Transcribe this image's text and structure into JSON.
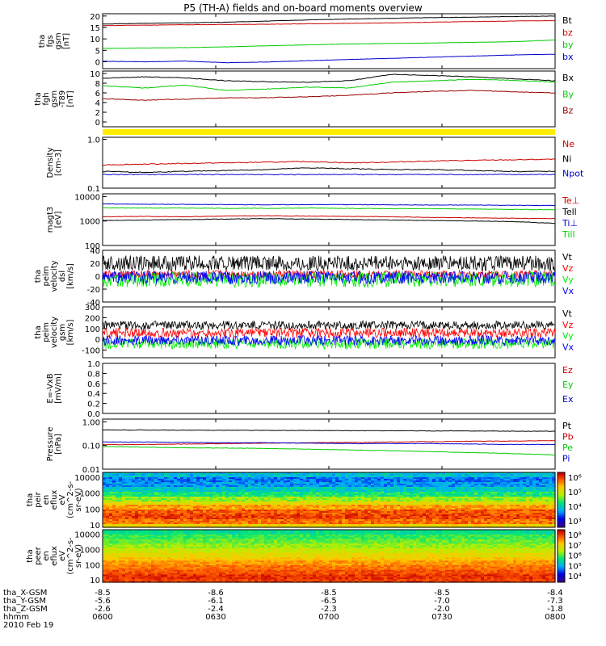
{
  "title": "P5 (TH-A) fields and on-board moments overview",
  "chart_data": [
    {
      "type": "line",
      "ylabel": [
        "tha",
        "fgs",
        "gsm",
        "[nT]"
      ],
      "yticks": [
        "0",
        "5",
        "10",
        "15",
        "20"
      ],
      "ylim": [
        -3,
        21
      ],
      "series": [
        {
          "name": "Bt",
          "color": "#000000",
          "values": [
            16.5,
            16.8,
            17.0,
            17.3,
            17.8,
            18.3,
            18.7,
            19.0,
            19.3,
            19.5,
            19.8,
            20.0
          ]
        },
        {
          "name": "bz",
          "color": "#cc0000",
          "values": [
            15.8,
            16.0,
            16.2,
            16.3,
            16.4,
            16.6,
            16.8,
            17.0,
            17.3,
            17.6,
            17.8,
            18.0
          ]
        },
        {
          "name": "by",
          "color": "#00cc00",
          "values": [
            5.8,
            6.0,
            6.2,
            6.5,
            7.0,
            7.4,
            7.8,
            8.0,
            8.2,
            8.5,
            8.8,
            9.5
          ]
        },
        {
          "name": "bx",
          "color": "#0000cc",
          "values": [
            0.2,
            0.0,
            0.3,
            -0.4,
            -0.1,
            0.5,
            1.0,
            1.5,
            2.0,
            2.5,
            3.0,
            3.3
          ]
        }
      ]
    },
    {
      "type": "line",
      "ylabel": [
        "tha",
        "fgh",
        "gsm",
        "-T89",
        "[nT]"
      ],
      "yticks": [
        "0",
        "2",
        "4",
        "6",
        "8",
        "10"
      ],
      "ylim": [
        -1,
        10.5
      ],
      "series": [
        {
          "name": "Bx",
          "color": "#000000",
          "values": [
            9.0,
            9.3,
            9.1,
            8.5,
            8.3,
            8.2,
            8.5,
            9.8,
            9.6,
            9.3,
            8.9,
            8.5
          ]
        },
        {
          "name": "By",
          "color": "#00cc00",
          "values": [
            7.5,
            7.0,
            7.6,
            6.5,
            6.8,
            7.2,
            7.0,
            8.2,
            8.5,
            8.8,
            8.6,
            8.2
          ]
        },
        {
          "name": "Bz",
          "color": "#990000",
          "values": [
            4.8,
            4.5,
            4.7,
            5.0,
            5.0,
            5.2,
            5.5,
            6.0,
            6.3,
            6.5,
            6.2,
            6.0
          ]
        }
      ]
    },
    {
      "type": "bar",
      "color": "#ffee00",
      "values": [
        1
      ]
    },
    {
      "type": "line",
      "yscale": "log",
      "ylabel": [
        "Density",
        "[cm-3]"
      ],
      "yticks": [
        "0.1",
        "1.0"
      ],
      "ylim": [
        0.1,
        1.1
      ],
      "series": [
        {
          "name": "Ne",
          "color": "#cc0000",
          "values": [
            0.3,
            0.31,
            0.32,
            0.33,
            0.34,
            0.35,
            0.33,
            0.34,
            0.36,
            0.37,
            0.38,
            0.39
          ]
        },
        {
          "name": "Ni",
          "color": "#000000",
          "values": [
            0.22,
            0.21,
            0.22,
            0.23,
            0.24,
            0.26,
            0.25,
            0.24,
            0.24,
            0.23,
            0.22,
            0.22
          ]
        },
        {
          "name": "Npot",
          "color": "#0000cc",
          "values": [
            0.19,
            0.19,
            0.19,
            0.19,
            0.19,
            0.19,
            0.19,
            0.19,
            0.19,
            0.19,
            0.19,
            0.19
          ]
        }
      ]
    },
    {
      "type": "line",
      "yscale": "log",
      "ylabel": [
        "magt3",
        "[eV]"
      ],
      "yticks": [
        "100",
        "1000",
        "10000"
      ],
      "ylim": [
        100,
        13000
      ],
      "series": [
        {
          "name": "Te⊥",
          "color": "#cc0000",
          "values": [
            1500,
            1550,
            1500,
            1600,
            1650,
            1600,
            1550,
            1500,
            1400,
            1350,
            1300,
            1250
          ]
        },
        {
          "name": "Tell",
          "color": "#000000",
          "values": [
            1050,
            1100,
            1150,
            1200,
            1250,
            1200,
            1150,
            1100,
            1050,
            1000,
            950,
            800
          ]
        },
        {
          "name": "Ti⊥",
          "color": "#0000cc",
          "values": [
            5000,
            4900,
            4800,
            4700,
            4600,
            4700,
            4700,
            4600,
            4500,
            4500,
            4400,
            4300
          ]
        },
        {
          "name": "Till",
          "color": "#00cc00",
          "values": [
            3500,
            3400,
            3400,
            3300,
            3300,
            3400,
            3300,
            3200,
            3200,
            3100,
            3000,
            2900
          ]
        }
      ]
    },
    {
      "type": "line",
      "ylabel": [
        "tha",
        "peim",
        "velocity",
        "dsl",
        "[km/s]"
      ],
      "yticks": [
        "-40",
        "-20",
        "0",
        "20",
        "40"
      ],
      "ylim": [
        -40,
        40
      ],
      "series": [
        {
          "name": "Vt",
          "color": "#000000",
          "values": [
            20,
            20,
            20,
            20,
            20,
            20,
            20,
            20,
            20,
            20,
            20,
            20
          ],
          "noise": 12
        },
        {
          "name": "Vz",
          "color": "#ff0000",
          "values": [
            3,
            3,
            3,
            3,
            3,
            3,
            3,
            3,
            3,
            3,
            3,
            3
          ],
          "noise": 6
        },
        {
          "name": "Vy",
          "color": "#00ee00",
          "values": [
            -5,
            -5,
            -5,
            -5,
            -5,
            -5,
            -5,
            -5,
            -5,
            -5,
            -5,
            -5
          ],
          "noise": 12
        },
        {
          "name": "Vx",
          "color": "#0000ff",
          "values": [
            -2,
            -2,
            -2,
            -2,
            -2,
            -2,
            -2,
            -2,
            -2,
            -2,
            -2,
            -2
          ],
          "noise": 10
        }
      ]
    },
    {
      "type": "line",
      "ylabel": [
        "tha",
        "peim",
        "velocity",
        "gsm",
        "[km/s]"
      ],
      "yticks": [
        "-100",
        "0",
        "100",
        "200",
        "300"
      ],
      "ylim": [
        -170,
        300
      ],
      "series": [
        {
          "name": "Vt",
          "color": "#000000",
          "values": [
            130,
            130,
            130,
            130,
            130,
            130,
            130,
            130,
            130,
            130,
            130,
            130
          ],
          "noise": 40
        },
        {
          "name": "Vz",
          "color": "#ff0000",
          "values": [
            60,
            60,
            60,
            60,
            60,
            60,
            60,
            60,
            60,
            60,
            60,
            60
          ],
          "noise": 45
        },
        {
          "name": "Vy",
          "color": "#00ee00",
          "values": [
            -40,
            -40,
            -40,
            -40,
            -40,
            -40,
            -40,
            -40,
            -40,
            -40,
            -40,
            -40
          ],
          "noise": 50
        },
        {
          "name": "Vx",
          "color": "#0000ff",
          "values": [
            -10,
            -10,
            -10,
            -10,
            -10,
            -10,
            -10,
            -10,
            -10,
            -10,
            -10,
            -10
          ],
          "noise": 45
        }
      ]
    },
    {
      "type": "line",
      "ylabel": [
        "E=-VxB",
        "[mV/m]"
      ],
      "yticks": [
        "0.0",
        "0.2",
        "0.4",
        "0.6",
        "0.8",
        "1.0"
      ],
      "ylim": [
        0,
        1
      ],
      "series": [
        {
          "name": "Ez",
          "color": "#cc0000",
          "values": []
        },
        {
          "name": "Ey",
          "color": "#00cc00",
          "values": []
        },
        {
          "name": "Ex",
          "color": "#0000cc",
          "values": []
        }
      ]
    },
    {
      "type": "line",
      "yscale": "log",
      "ylabel": [
        "Pressure",
        "[nPa]"
      ],
      "yticks": [
        "0.01",
        "0.10",
        "1.00"
      ],
      "ylim": [
        0.01,
        1.3
      ],
      "series": [
        {
          "name": "Pt",
          "color": "#000000",
          "values": [
            0.45,
            0.45,
            0.44,
            0.44,
            0.43,
            0.43,
            0.42,
            0.42,
            0.41,
            0.41,
            0.4,
            0.4
          ]
        },
        {
          "name": "Pb",
          "color": "#cc0000",
          "values": [
            0.11,
            0.11,
            0.115,
            0.12,
            0.125,
            0.13,
            0.135,
            0.14,
            0.145,
            0.15,
            0.155,
            0.16
          ]
        },
        {
          "name": "Pe",
          "color": "#00cc00",
          "values": [
            0.09,
            0.085,
            0.08,
            0.078,
            0.075,
            0.07,
            0.065,
            0.06,
            0.055,
            0.05,
            0.045,
            0.04
          ]
        },
        {
          "name": "Pi",
          "color": "#0000cc",
          "values": [
            0.14,
            0.14,
            0.135,
            0.13,
            0.13,
            0.125,
            0.12,
            0.12,
            0.12,
            0.115,
            0.11,
            0.11
          ]
        }
      ]
    },
    {
      "type": "heatmap",
      "ylabel": [
        "tha",
        "peir",
        "en",
        "eflux",
        "eV",
        "(cm^2-s-",
        "sr-eV)"
      ],
      "yticks": [
        "10",
        "100",
        "1000",
        "10000"
      ],
      "ylim": [
        7,
        20000
      ],
      "yscale": "log",
      "colorbar": {
        "ticks": [
          "10³",
          "10⁴",
          "10⁵",
          "10⁶"
        ],
        "range": [
          3,
          6.5
        ]
      },
      "profile": [
        5.5,
        6.0,
        6.2,
        6.1,
        5.8,
        5.4,
        5.0,
        4.6,
        4.3,
        4.0,
        3.9,
        4.2
      ]
    },
    {
      "type": "heatmap",
      "ylabel": [
        "tha",
        "peer",
        "en",
        "eflux",
        "eV",
        "(cm^2-s-",
        "sr-eV)"
      ],
      "yticks": [
        "10",
        "100",
        "1000",
        "10000"
      ],
      "ylim": [
        7,
        20000
      ],
      "yscale": "log",
      "colorbar": {
        "ticks": [
          "10⁴",
          "10⁵",
          "10⁶",
          "10⁷",
          "10⁸"
        ],
        "range": [
          3.5,
          8.2
        ]
      },
      "profile": [
        7.8,
        7.9,
        7.7,
        7.5,
        7.3,
        7.0,
        6.8,
        6.5,
        6.2,
        6.0,
        5.8,
        5.5
      ]
    }
  ],
  "footer": {
    "date": "2010 Feb 19",
    "rows": [
      {
        "label": "tha_X-GSM",
        "values": [
          "-8.5",
          "-8.6",
          "-8.5",
          "-8.5",
          "-8.4"
        ]
      },
      {
        "label": "tha_Y-GSM",
        "values": [
          "-5.6",
          "-6.1",
          "-6.5",
          "-7.0",
          "-7.3"
        ]
      },
      {
        "label": "tha_Z-GSM",
        "values": [
          "-2.6",
          "-2.4",
          "-2.3",
          "-2.0",
          "-1.8"
        ]
      },
      {
        "label": "hhmm",
        "values": [
          "0600",
          "0630",
          "0700",
          "0730",
          "0800"
        ]
      }
    ]
  }
}
